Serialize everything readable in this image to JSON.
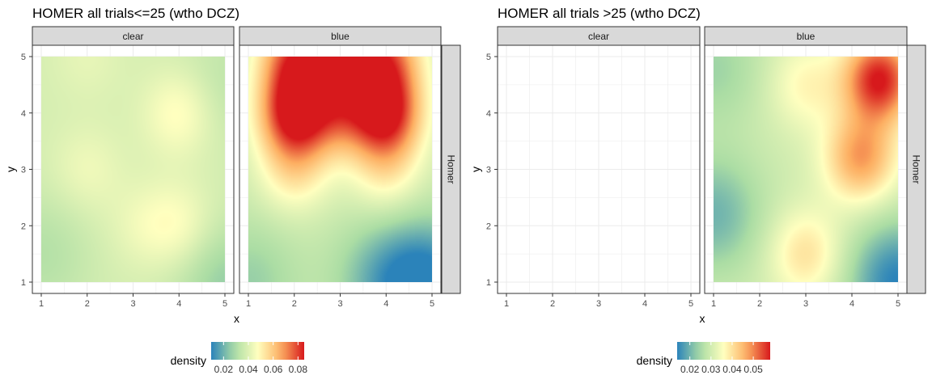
{
  "chart_data": [
    {
      "type": "heatmap",
      "title": "HOMER all trials<=25  (wtho DCZ)",
      "xlabel": "x",
      "ylabel": "y",
      "xlim": [
        1,
        5
      ],
      "ylim": [
        1,
        5
      ],
      "x_ticks": [
        "1",
        "2",
        "3",
        "4",
        "5"
      ],
      "y_ticks": [
        "1",
        "2",
        "3",
        "4",
        "5"
      ],
      "row_strip": "Homer",
      "legend": {
        "title": "density",
        "range": [
          0.01,
          0.085
        ],
        "ticks": [
          0.02,
          0.04,
          0.06,
          0.08
        ],
        "tick_labels": [
          "0.02",
          "0.04",
          "0.06",
          "0.08"
        ]
      },
      "facets": [
        {
          "label": "clear",
          "base_density": 0.038,
          "peaks": [
            {
              "x": 4.0,
              "y": 4.0,
              "density": 0.049
            },
            {
              "x": 2.0,
              "y": 3.0,
              "density": 0.044
            },
            {
              "x": 3.2,
              "y": 2.0,
              "density": 0.043
            },
            {
              "x": 4.0,
              "y": 2.0,
              "density": 0.047
            },
            {
              "x": 2.0,
              "y": 5.0,
              "density": 0.042
            }
          ],
          "lows": [
            {
              "x": 5.0,
              "y": 1.0,
              "density": 0.026
            },
            {
              "x": 1.0,
              "y": 1.5,
              "density": 0.031
            },
            {
              "x": 5.0,
              "y": 4.5,
              "density": 0.033
            }
          ]
        },
        {
          "label": "blue",
          "base_density": 0.036,
          "peaks": [
            {
              "x": 2.0,
              "y": 4.0,
              "density": 0.085
            },
            {
              "x": 4.0,
              "y": 4.0,
              "density": 0.084
            },
            {
              "x": 2.0,
              "y": 5.0,
              "density": 0.072
            },
            {
              "x": 3.0,
              "y": 5.0,
              "density": 0.068
            },
            {
              "x": 4.0,
              "y": 5.0,
              "density": 0.07
            },
            {
              "x": 2.0,
              "y": 3.0,
              "density": 0.052
            },
            {
              "x": 4.0,
              "y": 3.0,
              "density": 0.05
            },
            {
              "x": 3.0,
              "y": 4.0,
              "density": 0.058
            }
          ],
          "lows": [
            {
              "x": 5.0,
              "y": 1.0,
              "density": 0.012
            },
            {
              "x": 4.0,
              "y": 1.0,
              "density": 0.02
            },
            {
              "x": 1.0,
              "y": 1.0,
              "density": 0.026
            }
          ]
        }
      ]
    },
    {
      "type": "heatmap",
      "title": "HOMER all trials >25 (wtho DCZ)",
      "xlabel": "x",
      "ylabel": "y",
      "xlim": [
        1,
        5
      ],
      "ylim": [
        1,
        5
      ],
      "x_ticks": [
        "1",
        "2",
        "3",
        "4",
        "5"
      ],
      "y_ticks": [
        "1",
        "2",
        "3",
        "4",
        "5"
      ],
      "row_strip": "Homer",
      "legend": {
        "title": "density",
        "range": [
          0.014,
          0.058
        ],
        "ticks": [
          0.02,
          0.03,
          0.04,
          0.05
        ],
        "tick_labels": [
          "0.02",
          "0.03",
          "0.04",
          "0.05"
        ]
      },
      "facets": [
        {
          "label": "clear",
          "empty": true
        },
        {
          "label": "blue",
          "base_density": 0.03,
          "peaks": [
            {
              "x": 4.6,
              "y": 4.6,
              "density": 0.058
            },
            {
              "x": 4.2,
              "y": 3.2,
              "density": 0.048
            },
            {
              "x": 3.0,
              "y": 1.5,
              "density": 0.04
            },
            {
              "x": 3.0,
              "y": 4.5,
              "density": 0.037
            }
          ],
          "lows": [
            {
              "x": 5.0,
              "y": 1.0,
              "density": 0.014
            },
            {
              "x": 1.0,
              "y": 2.2,
              "density": 0.02
            },
            {
              "x": 1.0,
              "y": 4.8,
              "density": 0.024
            }
          ]
        }
      ]
    }
  ]
}
